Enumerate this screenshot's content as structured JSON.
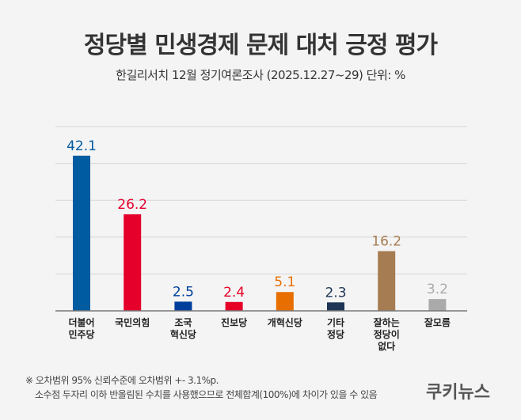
{
  "title": "정당별 민생경제 문제 대처 긍정 평가",
  "subtitle": "한길리서치 12월 정기여론조사 (2025.12.27~29) 단위: %",
  "chart_data": {
    "type": "bar",
    "categories": [
      [
        "더불어",
        "민주당"
      ],
      [
        "국민의힘"
      ],
      [
        "조국",
        "혁신당"
      ],
      [
        "진보당"
      ],
      [
        "개혁신당"
      ],
      [
        "기타",
        "정당"
      ],
      [
        "잘하는",
        "정당이",
        "없다"
      ],
      [
        "잘모름"
      ]
    ],
    "values": [
      42.1,
      26.2,
      2.5,
      2.4,
      5.1,
      2.3,
      16.2,
      3.2
    ],
    "value_labels": [
      "42.1",
      "26.2",
      "2.5",
      "2.4",
      "5.1",
      "2.3",
      "16.2",
      "3.2"
    ],
    "colors": [
      "#005ba0",
      "#e4002b",
      "#003e9b",
      "#e60026",
      "#e86e00",
      "#1e3555",
      "#a67c52",
      "#aaaaaa"
    ],
    "ylim": [
      0,
      50
    ],
    "grid": true
  },
  "notes": [
    "※ 오차범위 95% 신뢰수준에 오차범위 +- 3.1%p.",
    "소수점 두자리 이하 반올림된 수치를 사용했으므로 전체합계(100%)에 차이가 있을 수 있음"
  ],
  "logo": "쿠키뉴스"
}
